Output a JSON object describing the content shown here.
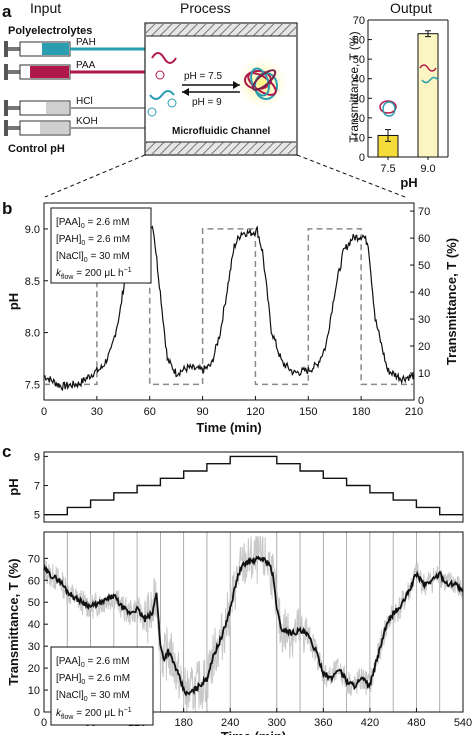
{
  "panel_a": {
    "label": "a",
    "headers": {
      "input": "Input",
      "process": "Process",
      "output": "Output"
    },
    "inputs": {
      "group1_title": "Polyelectrolytes",
      "syringes": [
        {
          "label": "PAH",
          "color": "#2a9db0"
        },
        {
          "label": "PAA",
          "color": "#b0174a"
        },
        {
          "label": "HCl",
          "color": "#9a9a9a"
        },
        {
          "label": "KOH",
          "color": "#9a9a9a"
        }
      ],
      "group2_title": "Control pH"
    },
    "process": {
      "ph_high_label": "pH = 7.5",
      "ph_low_label": "pH = 9",
      "channel_label": "Microfluidic Channel"
    }
  },
  "panel_b": {
    "label": "b",
    "legend_lines": [
      {
        "main": "[PAA]",
        "sub": "0",
        "rest": " = 2.6 mM"
      },
      {
        "main": "[PAH]",
        "sub": "0",
        "rest": " = 2.6 mM"
      },
      {
        "main": "[NaCl]",
        "sub": "0",
        "rest": " = 30 mM"
      },
      {
        "main": "k",
        "sub": "flow",
        "rest": " = 200 μL h",
        "sup": "−1"
      }
    ]
  },
  "panel_c": {
    "label": "c",
    "legend_lines": [
      {
        "main": "[PAA]",
        "sub": "0",
        "rest": " = 2.6 mM"
      },
      {
        "main": "[PAH]",
        "sub": "0",
        "rest": " = 2.6 mM"
      },
      {
        "main": "[NaCl]",
        "sub": "0",
        "rest": " = 30 mM"
      },
      {
        "main": "k",
        "sub": "flow",
        "rest": " = 200 μL h",
        "sup": "−1"
      }
    ]
  },
  "colors": {
    "bar_fill": "#f4dc3a",
    "bar_fill_light": "#fbf5c2",
    "noise_band": "#c8c8c8",
    "ph_dashed": "#8a8a8a"
  },
  "chart_data": [
    {
      "id": "output-bar",
      "type": "bar",
      "categories": [
        "7.5",
        "9.0"
      ],
      "values": [
        11,
        63
      ],
      "errors": [
        3,
        1.5
      ],
      "xlabel": "pH",
      "ylabel": "Transmittance, T (%)",
      "ylim": [
        0,
        70
      ],
      "yticks": [
        0,
        10,
        20,
        30,
        40,
        50,
        60,
        70
      ]
    },
    {
      "id": "b",
      "type": "line",
      "xlabel": "Time (min)",
      "ylabel_left": "pH",
      "ylabel_right": "Transmittance, T (%)",
      "xlim": [
        0,
        210
      ],
      "xticks": [
        0,
        30,
        60,
        90,
        120,
        150,
        180,
        210
      ],
      "ylim_left": [
        7.35,
        9.25
      ],
      "yticks_left": [
        7.5,
        8.0,
        8.5,
        9.0
      ],
      "ylim_right": [
        0,
        73
      ],
      "yticks_right": [
        0,
        10,
        20,
        30,
        40,
        50,
        60,
        70
      ],
      "series": [
        {
          "axis": "left",
          "style": "dashed",
          "x": [
            0,
            30,
            30,
            60,
            60,
            90,
            90,
            120,
            120,
            150,
            150,
            180,
            180,
            210
          ],
          "y": [
            7.5,
            7.5,
            9,
            9,
            7.5,
            7.5,
            9,
            9,
            7.5,
            7.5,
            9,
            9,
            7.5,
            7.5
          ]
        },
        {
          "axis": "right",
          "style": "solid",
          "x": [
            0,
            10,
            20,
            28,
            33,
            38,
            43,
            47,
            52,
            57,
            60,
            62,
            66,
            70,
            75,
            82,
            90,
            95,
            100,
            105,
            108,
            112,
            118,
            121,
            124,
            129,
            135,
            142,
            150,
            155,
            160,
            165,
            170,
            175,
            181,
            184,
            188,
            195,
            203,
            210
          ],
          "y": [
            9,
            5,
            6,
            10,
            12,
            18,
            32,
            50,
            60,
            63,
            65,
            64,
            40,
            15,
            10,
            12,
            11,
            13,
            25,
            45,
            57,
            62,
            62,
            63,
            55,
            26,
            14,
            10,
            11,
            13,
            20,
            40,
            55,
            60,
            61,
            58,
            30,
            11,
            8,
            9
          ]
        }
      ]
    },
    {
      "id": "c-top",
      "type": "line",
      "ylabel": "pH",
      "xlim": [
        0,
        540
      ],
      "ylim": [
        4.5,
        9.3
      ],
      "yticks": [
        5,
        7,
        9
      ],
      "series": [
        {
          "style": "step",
          "x": [
            0,
            30,
            30,
            60,
            60,
            90,
            90,
            120,
            120,
            150,
            150,
            180,
            180,
            210,
            210,
            240,
            240,
            300,
            300,
            330,
            330,
            360,
            360,
            390,
            390,
            420,
            420,
            450,
            450,
            480,
            480,
            510,
            510,
            540
          ],
          "y": [
            5,
            5,
            5.5,
            5.5,
            6,
            6,
            6.5,
            6.5,
            7,
            7,
            7.5,
            7.5,
            8,
            8,
            8.5,
            8.5,
            9,
            9,
            8.5,
            8.5,
            8,
            8,
            7.5,
            7.5,
            7,
            7,
            6.5,
            6.5,
            6,
            6,
            5.5,
            5.5,
            5,
            5
          ]
        }
      ]
    },
    {
      "id": "c-bottom",
      "type": "line",
      "xlabel": "Time (min)",
      "ylabel": "Transmittance, T (%)",
      "xlim": [
        0,
        540
      ],
      "xticks": [
        0,
        60,
        120,
        180,
        240,
        300,
        360,
        420,
        480,
        540
      ],
      "ylim": [
        0,
        82
      ],
      "yticks": [
        0,
        10,
        20,
        30,
        40,
        50,
        60,
        70
      ],
      "series": [
        {
          "style": "mean",
          "x": [
            0,
            10,
            20,
            30,
            40,
            50,
            60,
            75,
            90,
            100,
            110,
            120,
            130,
            140,
            145,
            150,
            155,
            160,
            170,
            175,
            180,
            185,
            190,
            200,
            210,
            215,
            220,
            230,
            240,
            245,
            250,
            255,
            260,
            270,
            280,
            290,
            295,
            300,
            305,
            320,
            330,
            340,
            350,
            360,
            370,
            380,
            390,
            400,
            410,
            420,
            430,
            440,
            450,
            460,
            470,
            480,
            490,
            500,
            510,
            520,
            530,
            540
          ],
          "y": [
            65,
            62,
            60,
            55,
            52,
            50,
            48,
            50,
            53,
            48,
            45,
            47,
            42,
            45,
            55,
            30,
            24,
            28,
            20,
            15,
            10,
            8,
            9,
            12,
            15,
            22,
            27,
            35,
            47,
            55,
            62,
            66,
            68,
            69,
            70,
            68,
            62,
            48,
            38,
            36,
            37,
            35,
            28,
            18,
            15,
            20,
            14,
            12,
            15,
            12,
            25,
            38,
            45,
            48,
            55,
            63,
            58,
            60,
            63,
            58,
            59,
            54
          ]
        }
      ]
    }
  ]
}
